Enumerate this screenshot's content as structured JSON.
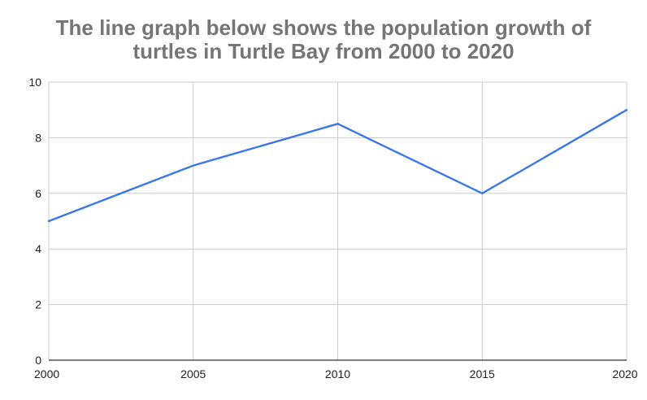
{
  "chart_data": {
    "type": "line",
    "title_lines": [
      "The line graph below shows the population growth of",
      "turtles in Turtle Bay from 2000 to 2020"
    ],
    "xlabel": "",
    "ylabel": "",
    "x": [
      2000,
      2005,
      2010,
      2015,
      2020
    ],
    "series": [
      {
        "values": [
          5,
          7,
          8.5,
          6,
          9
        ],
        "color": "#3b78e7"
      }
    ],
    "xlim": [
      2000,
      2020
    ],
    "ylim": [
      0,
      10
    ],
    "x_ticks": [
      "2000",
      "2005",
      "2010",
      "2015",
      "2020"
    ],
    "y_ticks": [
      "0",
      "2",
      "4",
      "6",
      "8",
      "10"
    ],
    "grid": true,
    "legend": "none",
    "colors": {
      "title": "#757575",
      "grid": "#cccccc",
      "axis": "#333333",
      "tick_label": "#222222"
    }
  }
}
